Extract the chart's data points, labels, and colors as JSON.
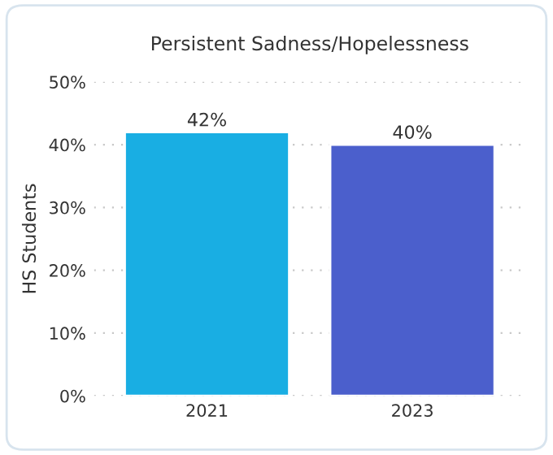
{
  "chart_data": {
    "type": "bar",
    "title": "Persistent Sadness/Hopelessness",
    "ylabel": "HS Students",
    "categories": [
      "2021",
      "2023"
    ],
    "values": [
      42,
      40
    ],
    "colors": [
      "#19aee3",
      "#4b5fcc"
    ],
    "value_labels": [
      "42%",
      "40%"
    ],
    "ylim": [
      0,
      50
    ],
    "yticks": [
      {
        "value": 0,
        "label": "0%"
      },
      {
        "value": 10,
        "label": "10%"
      },
      {
        "value": 20,
        "label": "20%"
      },
      {
        "value": 30,
        "label": "30%"
      },
      {
        "value": 40,
        "label": "40%"
      },
      {
        "value": 50,
        "label": "50%"
      }
    ],
    "grid": "y"
  }
}
